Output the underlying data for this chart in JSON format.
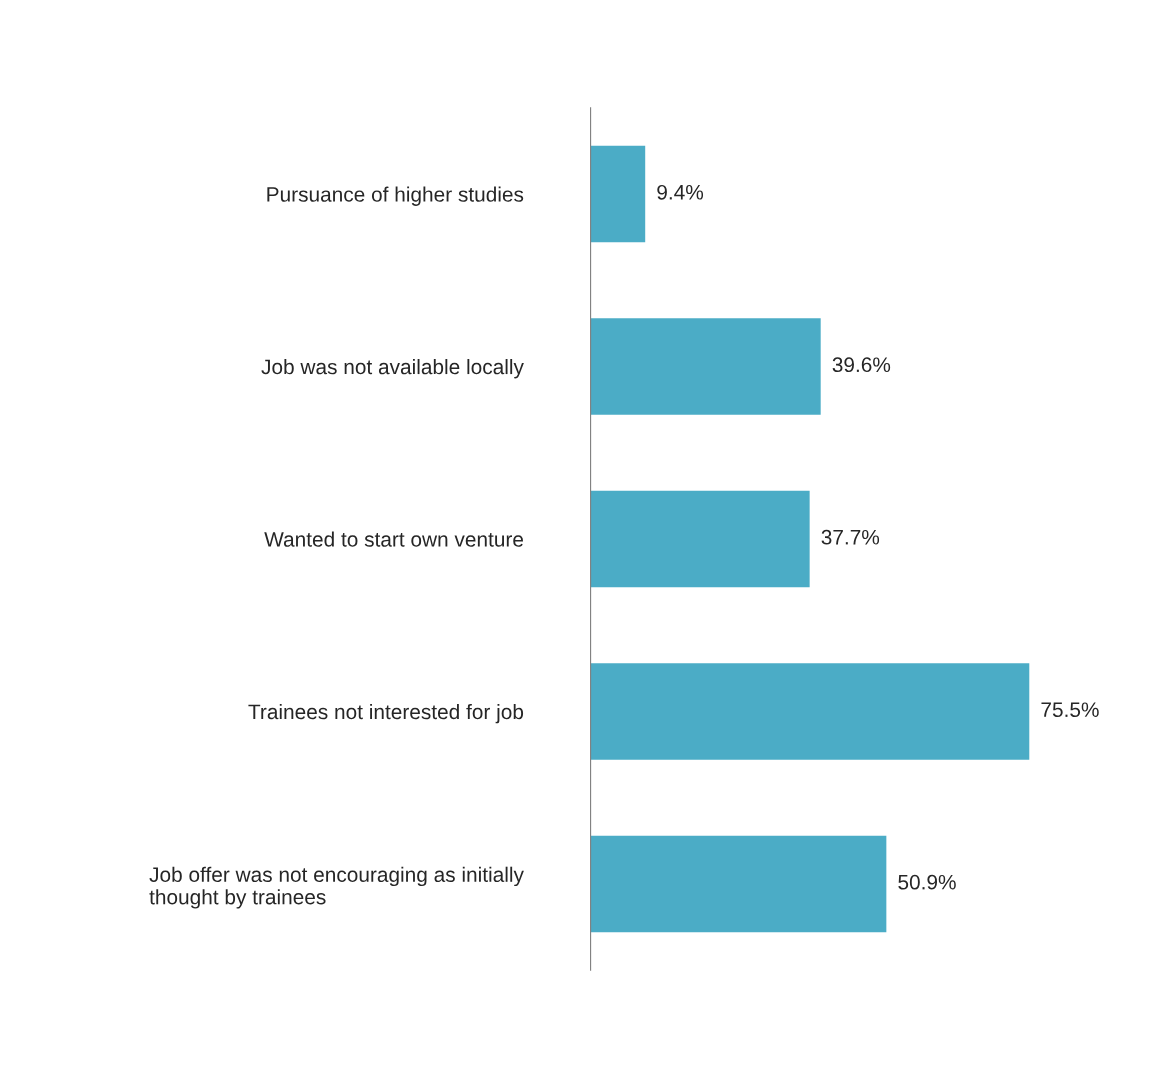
{
  "chart_data": {
    "type": "bar",
    "orientation": "horizontal",
    "categories": [
      "Pursuance of higher studies",
      "Job was not available locally",
      "Wanted to start own venture",
      "Trainees not interested for job",
      "Job offer was not encouraging as initially\nthought by trainees"
    ],
    "values": [
      9.4,
      39.6,
      37.7,
      75.5,
      50.9
    ],
    "color": "#4bacc6",
    "value_labels": [
      "9.4%",
      "39.6%",
      "37.7%",
      "75.5%",
      "50.9%"
    ],
    "grid": false,
    "legend": false,
    "tick_labels": "y"
  }
}
